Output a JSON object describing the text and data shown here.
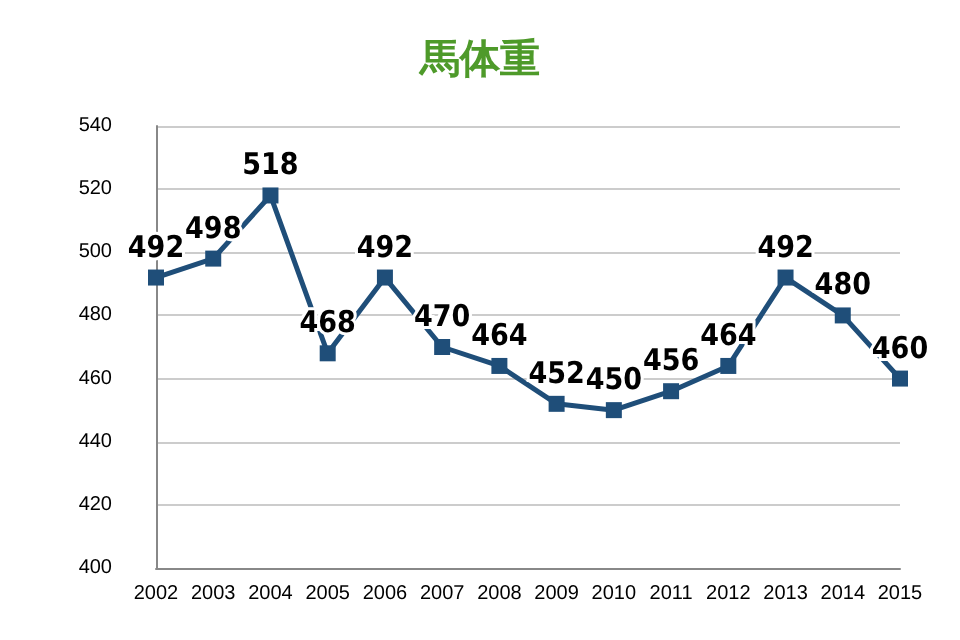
{
  "chart_data": {
    "type": "line",
    "title": "馬体重",
    "categories": [
      "2002",
      "2003",
      "2004",
      "2005",
      "2006",
      "2007",
      "2008",
      "2009",
      "2010",
      "2011",
      "2012",
      "2013",
      "2014",
      "2015"
    ],
    "series": [
      {
        "color": "#1f4e79",
        "values": [
          492,
          498,
          518,
          468,
          492,
          470,
          464,
          452,
          450,
          456,
          464,
          492,
          480,
          460
        ]
      }
    ],
    "ylim": [
      400,
      540
    ],
    "yticks": [
      400,
      420,
      440,
      460,
      480,
      500,
      520,
      540
    ],
    "grid": "y",
    "marker": "square",
    "line_style": "solid",
    "data_labels": true
  }
}
